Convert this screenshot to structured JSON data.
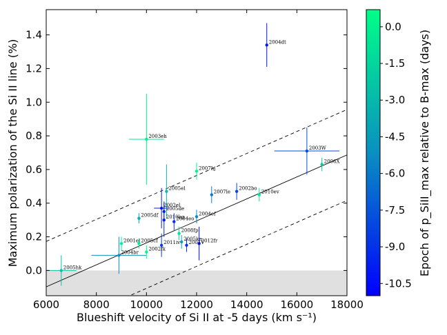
{
  "chart_data": {
    "type": "scatter",
    "xlabel": "Blueshift velocity of Si II at -5 days (km s⁻¹)",
    "ylabel": "Maximum polarization of the Si II line (%)",
    "xlim": [
      6000,
      18000
    ],
    "ylim": [
      -0.15,
      1.55
    ],
    "x_ticks": [
      "6000",
      "8000",
      "10000",
      "12000",
      "14000",
      "16000",
      "18000"
    ],
    "y_ticks": [
      "0.0",
      "0.2",
      "0.4",
      "0.6",
      "0.8",
      "1.0",
      "1.2",
      "1.4"
    ],
    "grid": false,
    "shaded_region": {
      "y_from": -0.15,
      "y_to": 0.0,
      "color": "#e0e0e0"
    },
    "fit_line": {
      "slope_per_kms": 6.53e-05,
      "intercept": -0.489
    },
    "band_lines": {
      "offset": 0.27,
      "style": "dashed"
    },
    "colorbar": {
      "label": "Epoch of p_SiII_max relative to B-max (days)",
      "range": [
        -11,
        0.7
      ],
      "ticks": [
        "0.0",
        "-1.5",
        "-3.0",
        "-4.5",
        "-6.0",
        "-7.5",
        "-9.0",
        "-10.5"
      ],
      "tick_values": [
        0.0,
        -1.5,
        -3.0,
        -4.5,
        -6.0,
        -7.5,
        -9.0,
        -10.5
      ],
      "colors": {
        "low": "#0000ff",
        "mid": "#0a9ea8",
        "high": "#00ff80"
      }
    },
    "points": [
      {
        "name": "2004dt",
        "x": 14800,
        "y": 1.34,
        "xerr": 0,
        "yerr": 0.13,
        "epoch": -10.2
      },
      {
        "name": "2003eh",
        "x": 10000,
        "y": 0.78,
        "xerr": 700,
        "yerr": 0.27,
        "epoch": -0.2
      },
      {
        "name": "2003W",
        "x": 16400,
        "y": 0.71,
        "xerr": 1300,
        "yerr": 0.14,
        "epoch": -8.0
      },
      {
        "name": "2006X",
        "x": 17000,
        "y": 0.63,
        "xerr": 0,
        "yerr": 0.04,
        "epoch": -2.0
      },
      {
        "name": "2007hj",
        "x": 12000,
        "y": 0.59,
        "xerr": 0,
        "yerr": 0.05,
        "epoch": 0.1
      },
      {
        "name": "2005el",
        "x": 10800,
        "y": 0.47,
        "xerr": 0,
        "yerr": 0.16,
        "epoch": -2.8
      },
      {
        "name": "2007le",
        "x": 12600,
        "y": 0.45,
        "xerr": 0,
        "yerr": 0.05,
        "epoch": -6.0
      },
      {
        "name": "2002bo",
        "x": 13600,
        "y": 0.47,
        "xerr": 0,
        "yerr": 0.05,
        "epoch": -8.2
      },
      {
        "name": "2010ev",
        "x": 14500,
        "y": 0.45,
        "xerr": 0,
        "yerr": 0.04,
        "epoch": -0.5
      },
      {
        "name": "2002el",
        "x": 10600,
        "y": 0.37,
        "xerr": 300,
        "yerr": 0.12,
        "epoch": -10.0
      },
      {
        "name": "2005de",
        "x": 10700,
        "y": 0.35,
        "xerr": 0,
        "yerr": 0.06,
        "epoch": -9.5
      },
      {
        "name": "2005df",
        "x": 9700,
        "y": 0.31,
        "xerr": 0,
        "yerr": 0.03,
        "epoch": -3.5
      },
      {
        "name": "2010kg",
        "x": 10700,
        "y": 0.3,
        "xerr": 0,
        "yerr": 0.1,
        "epoch": -9.8
      },
      {
        "name": "2004eo",
        "x": 11100,
        "y": 0.29,
        "xerr": 0,
        "yerr": 0.05,
        "epoch": -9.0
      },
      {
        "name": "2004ef",
        "x": 12000,
        "y": 0.32,
        "xerr": 0,
        "yerr": 0.04,
        "epoch": -5.5
      },
      {
        "name": "2008fp",
        "x": 11300,
        "y": 0.22,
        "xerr": 0,
        "yerr": 0.04,
        "epoch": -0.8
      },
      {
        "name": "2001el",
        "x": 9000,
        "y": 0.16,
        "xerr": 0,
        "yerr": 0.04,
        "epoch": 0.0
      },
      {
        "name": "2005cf",
        "x": 9700,
        "y": 0.16,
        "xerr": 0,
        "yerr": 0.03,
        "epoch": -0.3
      },
      {
        "name": "2005ke",
        "x": 11400,
        "y": 0.17,
        "xerr": 0,
        "yerr": 0.04,
        "epoch": -4.0
      },
      {
        "name": "2012fr",
        "x": 12100,
        "y": 0.16,
        "xerr": 0,
        "yerr": 0.1,
        "epoch": -10.5
      },
      {
        "name": "2004br",
        "x": 8900,
        "y": 0.09,
        "xerr": 1100,
        "yerr": 0.11,
        "epoch": -5.0
      },
      {
        "name": "2011iv",
        "x": 10600,
        "y": 0.15,
        "xerr": 0,
        "yerr": 0.07,
        "epoch": -8.5
      },
      {
        "name": "2002fk",
        "x": 10000,
        "y": 0.11,
        "xerr": 0,
        "yerr": 0.04,
        "epoch": 0.2
      },
      {
        "name": "2001V",
        "x": 11600,
        "y": 0.15,
        "xerr": 0,
        "yerr": 0.04,
        "epoch": -9.0
      },
      {
        "name": "2005hk",
        "x": 6600,
        "y": 0.0,
        "xerr": 600,
        "yerr": 0.09,
        "epoch": -2.5
      }
    ]
  }
}
